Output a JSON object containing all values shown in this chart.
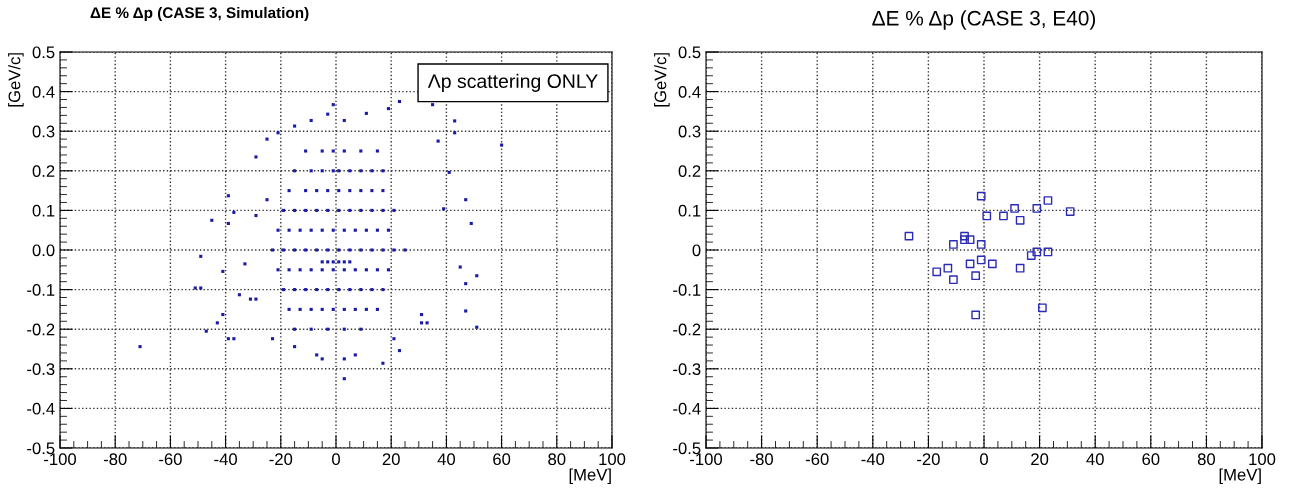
{
  "chart_data": [
    {
      "type": "scatter",
      "title": "ΔE % Δp (CASE 3, Simulation)",
      "xlabel": "[MeV]",
      "ylabel": "[GeV/c]",
      "annotations": [
        "Λp scattering ONLY"
      ],
      "marker": "square",
      "grid": true,
      "xlim": [
        -100,
        100
      ],
      "xticks": [
        -100,
        -80,
        -60,
        -40,
        -20,
        0,
        20,
        40,
        60,
        80,
        100
      ],
      "ylim": [
        -0.5,
        0.5
      ],
      "yticks": [
        -0.5,
        -0.4,
        -0.3,
        -0.2,
        -0.1,
        {
          "value": 0,
          "label": "0.0"
        },
        0.1,
        0.2,
        0.3,
        0.4,
        0.5
      ],
      "series": [
        {
          "color": "#1a1aa6",
          "x": [
            60,
            -71,
            -1,
            23,
            35,
            3,
            17,
            51,
            51,
            49,
            47,
            45,
            47,
            47,
            41,
            39,
            43,
            43,
            -49,
            -51,
            -49,
            -45,
            -47,
            -43,
            -39,
            -39,
            -37,
            -41,
            -41,
            -39,
            -37,
            -29,
            -25,
            -21,
            -25,
            -29,
            -35,
            -31,
            -29,
            -33,
            -23,
            -15,
            -15,
            -9,
            -3,
            3,
            11,
            19,
            -7,
            -5,
            3,
            7,
            23,
            21,
            31,
            31,
            33,
            37,
            -11,
            -5,
            -1,
            3,
            9,
            15,
            -15,
            -9,
            -5,
            -1,
            1,
            5,
            9,
            13,
            17,
            -17,
            -11,
            -7,
            -3,
            1,
            5,
            9,
            13,
            17,
            -19,
            -15,
            -11,
            -7,
            -3,
            1,
            5,
            9,
            13,
            17,
            21,
            -21,
            -17,
            -13,
            -9,
            -5,
            -1,
            3,
            7,
            11,
            15,
            19,
            -23,
            -19,
            -15,
            -11,
            -7,
            -3,
            1,
            5,
            9,
            13,
            17,
            21,
            25,
            -5,
            -3,
            -1,
            1,
            3,
            5,
            -21,
            -17,
            -13,
            -9,
            -5,
            -1,
            3,
            7,
            11,
            15,
            19,
            -19,
            -15,
            -11,
            -7,
            -3,
            1,
            5,
            9,
            13,
            17,
            -17,
            -13,
            -9,
            -5,
            -1,
            3,
            7,
            11,
            15,
            -15,
            -9,
            -3,
            3,
            9
          ],
          "values": [
            0.265,
            -0.244,
            0.367,
            0.375,
            0.367,
            -0.325,
            -0.286,
            -0.195,
            -0.065,
            0.067,
            0.127,
            -0.043,
            -0.085,
            -0.154,
            0.196,
            0.104,
            0.326,
            0.296,
            -0.016,
            -0.096,
            -0.096,
            0.075,
            -0.205,
            -0.184,
            0.137,
            0.067,
            0.095,
            -0.054,
            -0.163,
            -0.224,
            -0.224,
            0.235,
            0.28,
            0.296,
            0.127,
            0.087,
            -0.113,
            -0.124,
            -0.124,
            -0.035,
            -0.224,
            -0.244,
            0.313,
            0.327,
            0.343,
            0.327,
            0.345,
            0.357,
            -0.265,
            -0.275,
            -0.275,
            -0.265,
            -0.254,
            -0.224,
            -0.163,
            -0.184,
            -0.184,
            0.275,
            0.25,
            0.25,
            0.25,
            0.25,
            0.25,
            0.25,
            0.2,
            0.2,
            0.2,
            0.2,
            0.2,
            0.2,
            0.2,
            0.2,
            0.2,
            0.15,
            0.15,
            0.15,
            0.15,
            0.15,
            0.15,
            0.15,
            0.15,
            0.15,
            0.1,
            0.1,
            0.1,
            0.1,
            0.1,
            0.1,
            0.1,
            0.1,
            0.1,
            0.1,
            0.1,
            0.05,
            0.05,
            0.05,
            0.05,
            0.05,
            0.05,
            0.05,
            0.05,
            0.05,
            0.05,
            0.05,
            0,
            0,
            0,
            0,
            0,
            0,
            0,
            0,
            0,
            0,
            0,
            0,
            0,
            -0.03,
            -0.03,
            -0.03,
            -0.03,
            -0.03,
            -0.03,
            -0.05,
            -0.05,
            -0.05,
            -0.05,
            -0.05,
            -0.05,
            -0.05,
            -0.05,
            -0.05,
            -0.05,
            -0.05,
            -0.1,
            -0.1,
            -0.1,
            -0.1,
            -0.1,
            -0.1,
            -0.1,
            -0.1,
            -0.1,
            -0.1,
            -0.15,
            -0.15,
            -0.15,
            -0.15,
            -0.15,
            -0.15,
            -0.15,
            -0.15,
            -0.15,
            -0.2,
            -0.2,
            -0.2,
            -0.2,
            -0.2
          ]
        }
      ]
    },
    {
      "type": "scatter",
      "title": "ΔE % Δp (CASE 3, E40)",
      "xlabel": "[MeV]",
      "ylabel": "[GeV/c]",
      "marker": "square",
      "grid": true,
      "xlim": [
        -100,
        100
      ],
      "xticks": [
        -100,
        -80,
        -60,
        -40,
        -20,
        0,
        20,
        40,
        60,
        80,
        100
      ],
      "ylim": [
        -0.5,
        0.5
      ],
      "yticks": [
        -0.5,
        -0.4,
        -0.3,
        -0.2,
        -0.1,
        0,
        0.1,
        0.2,
        0.3,
        0.4,
        0.5
      ],
      "series": [
        {
          "color": "#2b2bb5",
          "x": [
            -27,
            -1,
            23,
            11,
            19,
            31,
            1,
            7,
            13,
            -7,
            -7,
            -5,
            -11,
            -1,
            19,
            23,
            17,
            -1,
            -5,
            3,
            -17,
            -13,
            13,
            -3,
            -11,
            21,
            -3
          ],
          "values": [
            0.035,
            0.136,
            0.125,
            0.105,
            0.105,
            0.097,
            0.086,
            0.086,
            0.075,
            0.035,
            0.026,
            0.026,
            0.014,
            0.014,
            -0.005,
            -0.005,
            -0.014,
            -0.025,
            -0.035,
            -0.035,
            -0.055,
            -0.046,
            -0.046,
            -0.065,
            -0.075,
            -0.146,
            -0.164
          ]
        }
      ]
    }
  ]
}
